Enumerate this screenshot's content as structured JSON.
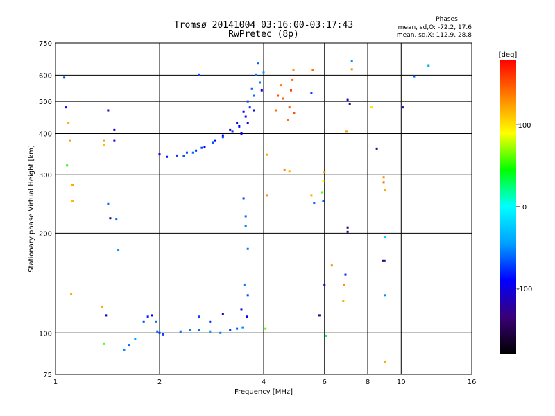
{
  "chart_data": {
    "type": "scatter",
    "title": "Tromsø 20141004 03:16:00-03:17:43",
    "subtitle": "RwPretec (8p)",
    "xlabel": "Frequency [MHz]",
    "ylabel": "Stationary phase Virtual Height [km]",
    "x_scale": "log",
    "y_scale": "log",
    "xlim": [
      1,
      16
    ],
    "ylim": [
      75,
      750
    ],
    "x_ticks": [
      1,
      2,
      4,
      6,
      8,
      10,
      16
    ],
    "y_ticks": [
      75,
      100,
      200,
      300,
      400,
      500,
      600,
      750
    ],
    "grid": true,
    "stats": {
      "heading": "Phases",
      "line_o": "mean, sd,O: -72.2, 17.6",
      "line_x": "mean, sd,X: 112.9, 28.8"
    },
    "colorbar": {
      "label": "[deg]",
      "range": [
        -180,
        180
      ],
      "ticks": [
        -100,
        0,
        100
      ],
      "stops": [
        "#000000",
        "#3a0078",
        "#0000ff",
        "#00a0ff",
        "#00ffff",
        "#00ff00",
        "#ffff00",
        "#ff8000",
        "#ff0000"
      ]
    },
    "series": [
      {
        "points": [
          [
            1.95,
            108,
            -60
          ],
          [
            1.97,
            101,
            -60
          ],
          [
            2.0,
            100,
            -75
          ],
          [
            2.05,
            99,
            -70
          ],
          [
            2.3,
            101,
            -60
          ],
          [
            2.45,
            102,
            -55
          ],
          [
            2.6,
            102,
            -60
          ],
          [
            2.8,
            101,
            -50
          ],
          [
            3.0,
            100,
            -55
          ],
          [
            3.2,
            102,
            -75
          ],
          [
            3.35,
            103,
            -65
          ],
          [
            1.7,
            96,
            -40
          ],
          [
            1.8,
            108,
            -70
          ],
          [
            1.85,
            112,
            -80
          ],
          [
            1.9,
            113,
            -90
          ],
          [
            2.6,
            112,
            -70
          ],
          [
            2.8,
            108,
            -80
          ],
          [
            3.05,
            114,
            -110
          ],
          [
            3.45,
            118,
            -100
          ]
        ]
      },
      {
        "points": [
          [
            2.0,
            346,
            -90
          ],
          [
            2.1,
            340,
            -85
          ],
          [
            2.25,
            343,
            -75
          ],
          [
            2.4,
            350,
            -70
          ],
          [
            2.55,
            355,
            -80
          ],
          [
            2.7,
            365,
            -90
          ],
          [
            2.9,
            380,
            -95
          ],
          [
            3.05,
            395,
            -100
          ],
          [
            3.2,
            410,
            -105
          ],
          [
            3.35,
            430,
            -110
          ],
          [
            3.5,
            465,
            -95
          ],
          [
            3.6,
            500,
            -70
          ],
          [
            3.7,
            545,
            -60
          ],
          [
            3.8,
            600,
            -55
          ],
          [
            3.85,
            650,
            -65
          ]
        ]
      },
      {
        "points": [
          [
            2.35,
            342,
            -65
          ],
          [
            2.5,
            350,
            -60
          ],
          [
            2.65,
            362,
            -70
          ],
          [
            2.85,
            375,
            -65
          ],
          [
            3.05,
            390,
            -70
          ],
          [
            3.25,
            405,
            -80
          ],
          [
            3.4,
            420,
            -90
          ],
          [
            3.55,
            450,
            -85
          ],
          [
            3.65,
            480,
            -75
          ],
          [
            3.75,
            520,
            -60
          ],
          [
            3.9,
            570,
            -55
          ],
          [
            4.0,
            610,
            -50
          ],
          [
            3.95,
            540,
            -100
          ],
          [
            3.75,
            470,
            -105
          ],
          [
            3.6,
            430,
            -100
          ],
          [
            3.45,
            400,
            -95
          ]
        ]
      },
      {
        "points": [
          [
            4.35,
            470,
            140
          ],
          [
            4.4,
            520,
            150
          ],
          [
            4.5,
            560,
            135
          ],
          [
            4.55,
            510,
            145
          ],
          [
            4.7,
            440,
            140
          ],
          [
            4.75,
            480,
            150
          ],
          [
            4.8,
            540,
            155
          ],
          [
            4.85,
            580,
            145
          ],
          [
            4.88,
            620,
            130
          ],
          [
            4.9,
            460,
            150
          ]
        ]
      },
      {
        "points": [
          [
            1.06,
            590,
            -70
          ],
          [
            1.07,
            480,
            -100
          ],
          [
            1.09,
            430,
            120
          ],
          [
            1.1,
            380,
            125
          ],
          [
            1.08,
            320,
            50
          ],
          [
            1.12,
            280,
            120
          ],
          [
            1.12,
            250,
            115
          ],
          [
            1.11,
            131,
            120
          ],
          [
            1.38,
            380,
            125
          ],
          [
            1.38,
            370,
            115
          ],
          [
            1.42,
            470,
            -110
          ],
          [
            1.48,
            410,
            -110
          ],
          [
            1.48,
            380,
            -100
          ],
          [
            1.42,
            245,
            -60
          ],
          [
            1.44,
            222,
            -140
          ],
          [
            1.5,
            220,
            -60
          ],
          [
            1.52,
            178,
            -50
          ],
          [
            1.36,
            120,
            120
          ],
          [
            1.4,
            113,
            -110
          ],
          [
            1.38,
            93,
            60
          ],
          [
            1.63,
            92,
            -60
          ],
          [
            1.58,
            89,
            -50
          ],
          [
            2.6,
            600,
            -70
          ],
          [
            3.5,
            255,
            -70
          ],
          [
            3.55,
            225,
            -60
          ],
          [
            3.55,
            210,
            -55
          ],
          [
            3.6,
            180,
            -55
          ],
          [
            3.52,
            140,
            -60
          ],
          [
            3.6,
            130,
            -70
          ],
          [
            3.58,
            112,
            -90
          ],
          [
            3.48,
            104,
            -50
          ],
          [
            4.1,
            345,
            120
          ],
          [
            4.1,
            260,
            130
          ],
          [
            4.05,
            103,
            60
          ],
          [
            4.6,
            310,
            130
          ],
          [
            4.75,
            308,
            120
          ],
          [
            5.5,
            530,
            -70
          ],
          [
            5.55,
            620,
            140
          ],
          [
            5.5,
            260,
            120
          ],
          [
            5.6,
            247,
            -60
          ],
          [
            6.0,
            305,
            130
          ],
          [
            5.95,
            288,
            90
          ],
          [
            5.9,
            265,
            60
          ],
          [
            5.95,
            250,
            -60
          ],
          [
            5.8,
            113,
            -130
          ],
          [
            6.0,
            140,
            -110
          ],
          [
            6.05,
            98,
            30
          ],
          [
            6.3,
            160,
            130
          ],
          [
            6.8,
            125,
            120
          ],
          [
            6.85,
            140,
            130
          ],
          [
            6.9,
            150,
            -80
          ],
          [
            7.0,
            208,
            -150
          ],
          [
            7.0,
            202,
            -120
          ],
          [
            7.0,
            505,
            -110
          ],
          [
            7.1,
            490,
            -130
          ],
          [
            7.2,
            660,
            -50
          ],
          [
            7.2,
            625,
            130
          ],
          [
            6.95,
            405,
            125
          ],
          [
            8.2,
            480,
            100
          ],
          [
            8.5,
            360,
            -130
          ],
          [
            8.9,
            295,
            130
          ],
          [
            8.9,
            285,
            140
          ],
          [
            9.0,
            270,
            120
          ],
          [
            9.0,
            195,
            -20
          ],
          [
            8.85,
            165,
            -140
          ],
          [
            8.95,
            165,
            -130
          ],
          [
            9.0,
            130,
            -50
          ],
          [
            9.0,
            82,
            120
          ],
          [
            10.1,
            480,
            -110
          ],
          [
            12.0,
            640,
            -40
          ],
          [
            10.9,
            595,
            -60
          ]
        ]
      }
    ]
  }
}
